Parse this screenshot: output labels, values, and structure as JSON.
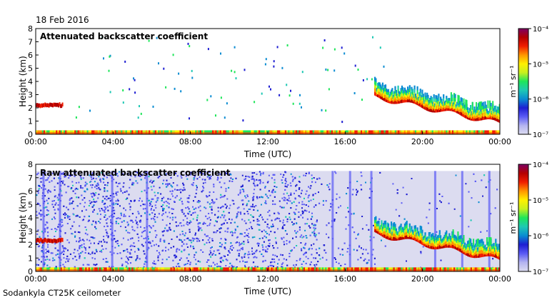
{
  "date": "18 Feb 2016",
  "footer": "Sodankyla CT25K ceilometer",
  "chart_data": [
    {
      "type": "heatmap",
      "title": "Attenuated backscatter coefficient",
      "xlabel": "Time (UTC)",
      "ylabel": "Height (km)",
      "x_ticks": [
        "00:00",
        "04:00",
        "08:00",
        "12:00",
        "16:00",
        "20:00",
        "00:00"
      ],
      "x_tick_hours": [
        0,
        4,
        8,
        12,
        16,
        20,
        24
      ],
      "y_ticks": [
        0,
        1,
        2,
        3,
        4,
        5,
        6,
        7,
        8
      ],
      "xlim_hours": [
        0,
        24
      ],
      "ylim_km": [
        0,
        8
      ],
      "colorbar": {
        "scale": "log",
        "range": [
          1e-07,
          0.0001
        ],
        "tick_labels": [
          "10⁻⁴",
          "10⁻⁵",
          "10⁻⁶",
          "10⁻⁷"
        ],
        "unit_label": "m⁻¹ sr⁻¹"
      },
      "features": {
        "near_surface_layer": {
          "from_h": 0,
          "to_h": 24,
          "height_km": [
            0,
            0.3
          ]
        },
        "early_cloud_layer": {
          "from_h": 0.0,
          "to_h": 1.4,
          "height_km": 2.2
        },
        "cloud_system": {
          "from_h": 17.5,
          "to_h": 24,
          "base_km_start": 2.8,
          "base_km_end": 0.8
        },
        "sparse_speckle": true
      }
    },
    {
      "type": "heatmap",
      "title": "Raw attenuated backscatter coefficient",
      "xlabel": "Time (UTC)",
      "ylabel": "Height (km)",
      "x_ticks": [
        "00:00",
        "04:00",
        "08:00",
        "12:00",
        "16:00",
        "20:00",
        "00:00"
      ],
      "x_tick_hours": [
        0,
        4,
        8,
        12,
        16,
        20,
        24
      ],
      "y_ticks": [
        0,
        1,
        2,
        3,
        4,
        5,
        6,
        7,
        8
      ],
      "xlim_hours": [
        0,
        24
      ],
      "ylim_km": [
        0,
        8
      ],
      "colorbar": {
        "scale": "log",
        "range": [
          1e-07,
          0.0001
        ],
        "tick_labels": [
          "10⁻⁴",
          "10⁻⁵",
          "10⁻⁶",
          "10⁻⁷"
        ],
        "unit_label": "m⁻¹ sr⁻¹"
      },
      "features": {
        "noise_top_km": 7.5,
        "dense_noise_until_h": 14.5,
        "early_cloud_layer": {
          "from_h": 0.0,
          "to_h": 1.4,
          "height_km": 2.3
        },
        "cloud_system": {
          "from_h": 17.5,
          "to_h": 24,
          "base_km_start": 2.8,
          "base_km_end": 0.8
        }
      }
    }
  ],
  "colors": {
    "colormap": [
      "#dcdcf0",
      "#b4b4f0",
      "#5a5af5",
      "#1e1ed2",
      "#0a8cd2",
      "#1ec8b4",
      "#1ee65a",
      "#c8f01e",
      "#fff000",
      "#ff9600",
      "#f01e00",
      "#b40000",
      "#7d0064"
    ]
  }
}
